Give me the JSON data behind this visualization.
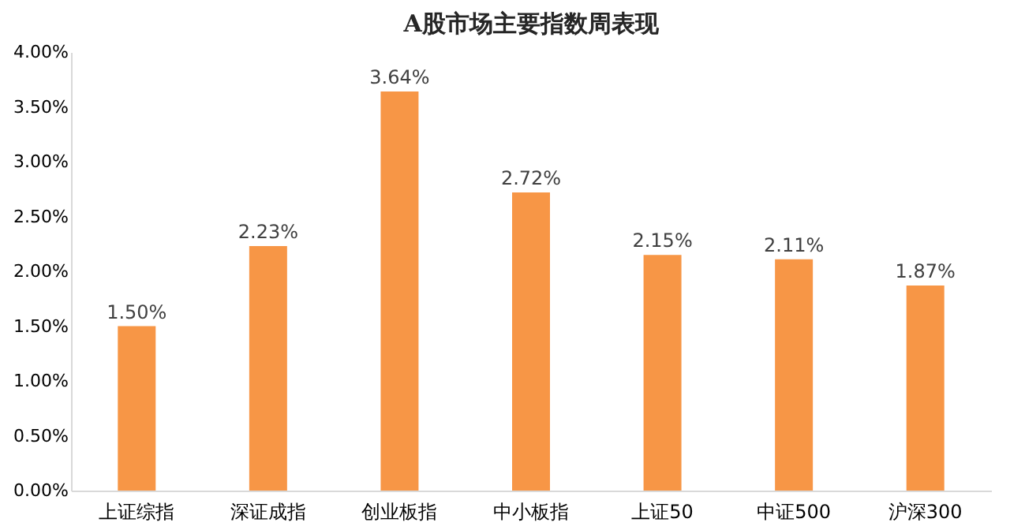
{
  "chart_data": {
    "type": "bar",
    "title": "A股市场主要指数周表现",
    "categories": [
      "上证综指",
      "深证成指",
      "创业板指",
      "中小板指",
      "上证50",
      "中证500",
      "沪深300"
    ],
    "series": [
      {
        "color": "#f79646",
        "values": [
          1.5,
          2.23,
          3.64,
          2.72,
          2.15,
          2.11,
          1.87
        ]
      }
    ],
    "value_labels": [
      "1.50%",
      "2.23%",
      "3.64%",
      "2.72%",
      "2.15%",
      "2.11%",
      "1.87%"
    ],
    "ylim": [
      0,
      4
    ],
    "yticks": [
      {
        "value": 0,
        "label": "0.00%"
      },
      {
        "value": 0.5,
        "label": "0.50%"
      },
      {
        "value": 1,
        "label": "1.00%"
      },
      {
        "value": 1.5,
        "label": "1.50%"
      },
      {
        "value": 2,
        "label": "2.00%"
      },
      {
        "value": 2.5,
        "label": "2.50%"
      },
      {
        "value": 3,
        "label": "3.00%"
      },
      {
        "value": 3.5,
        "label": "3.50%"
      },
      {
        "value": 4,
        "label": "4.00%"
      }
    ],
    "grid": false
  }
}
